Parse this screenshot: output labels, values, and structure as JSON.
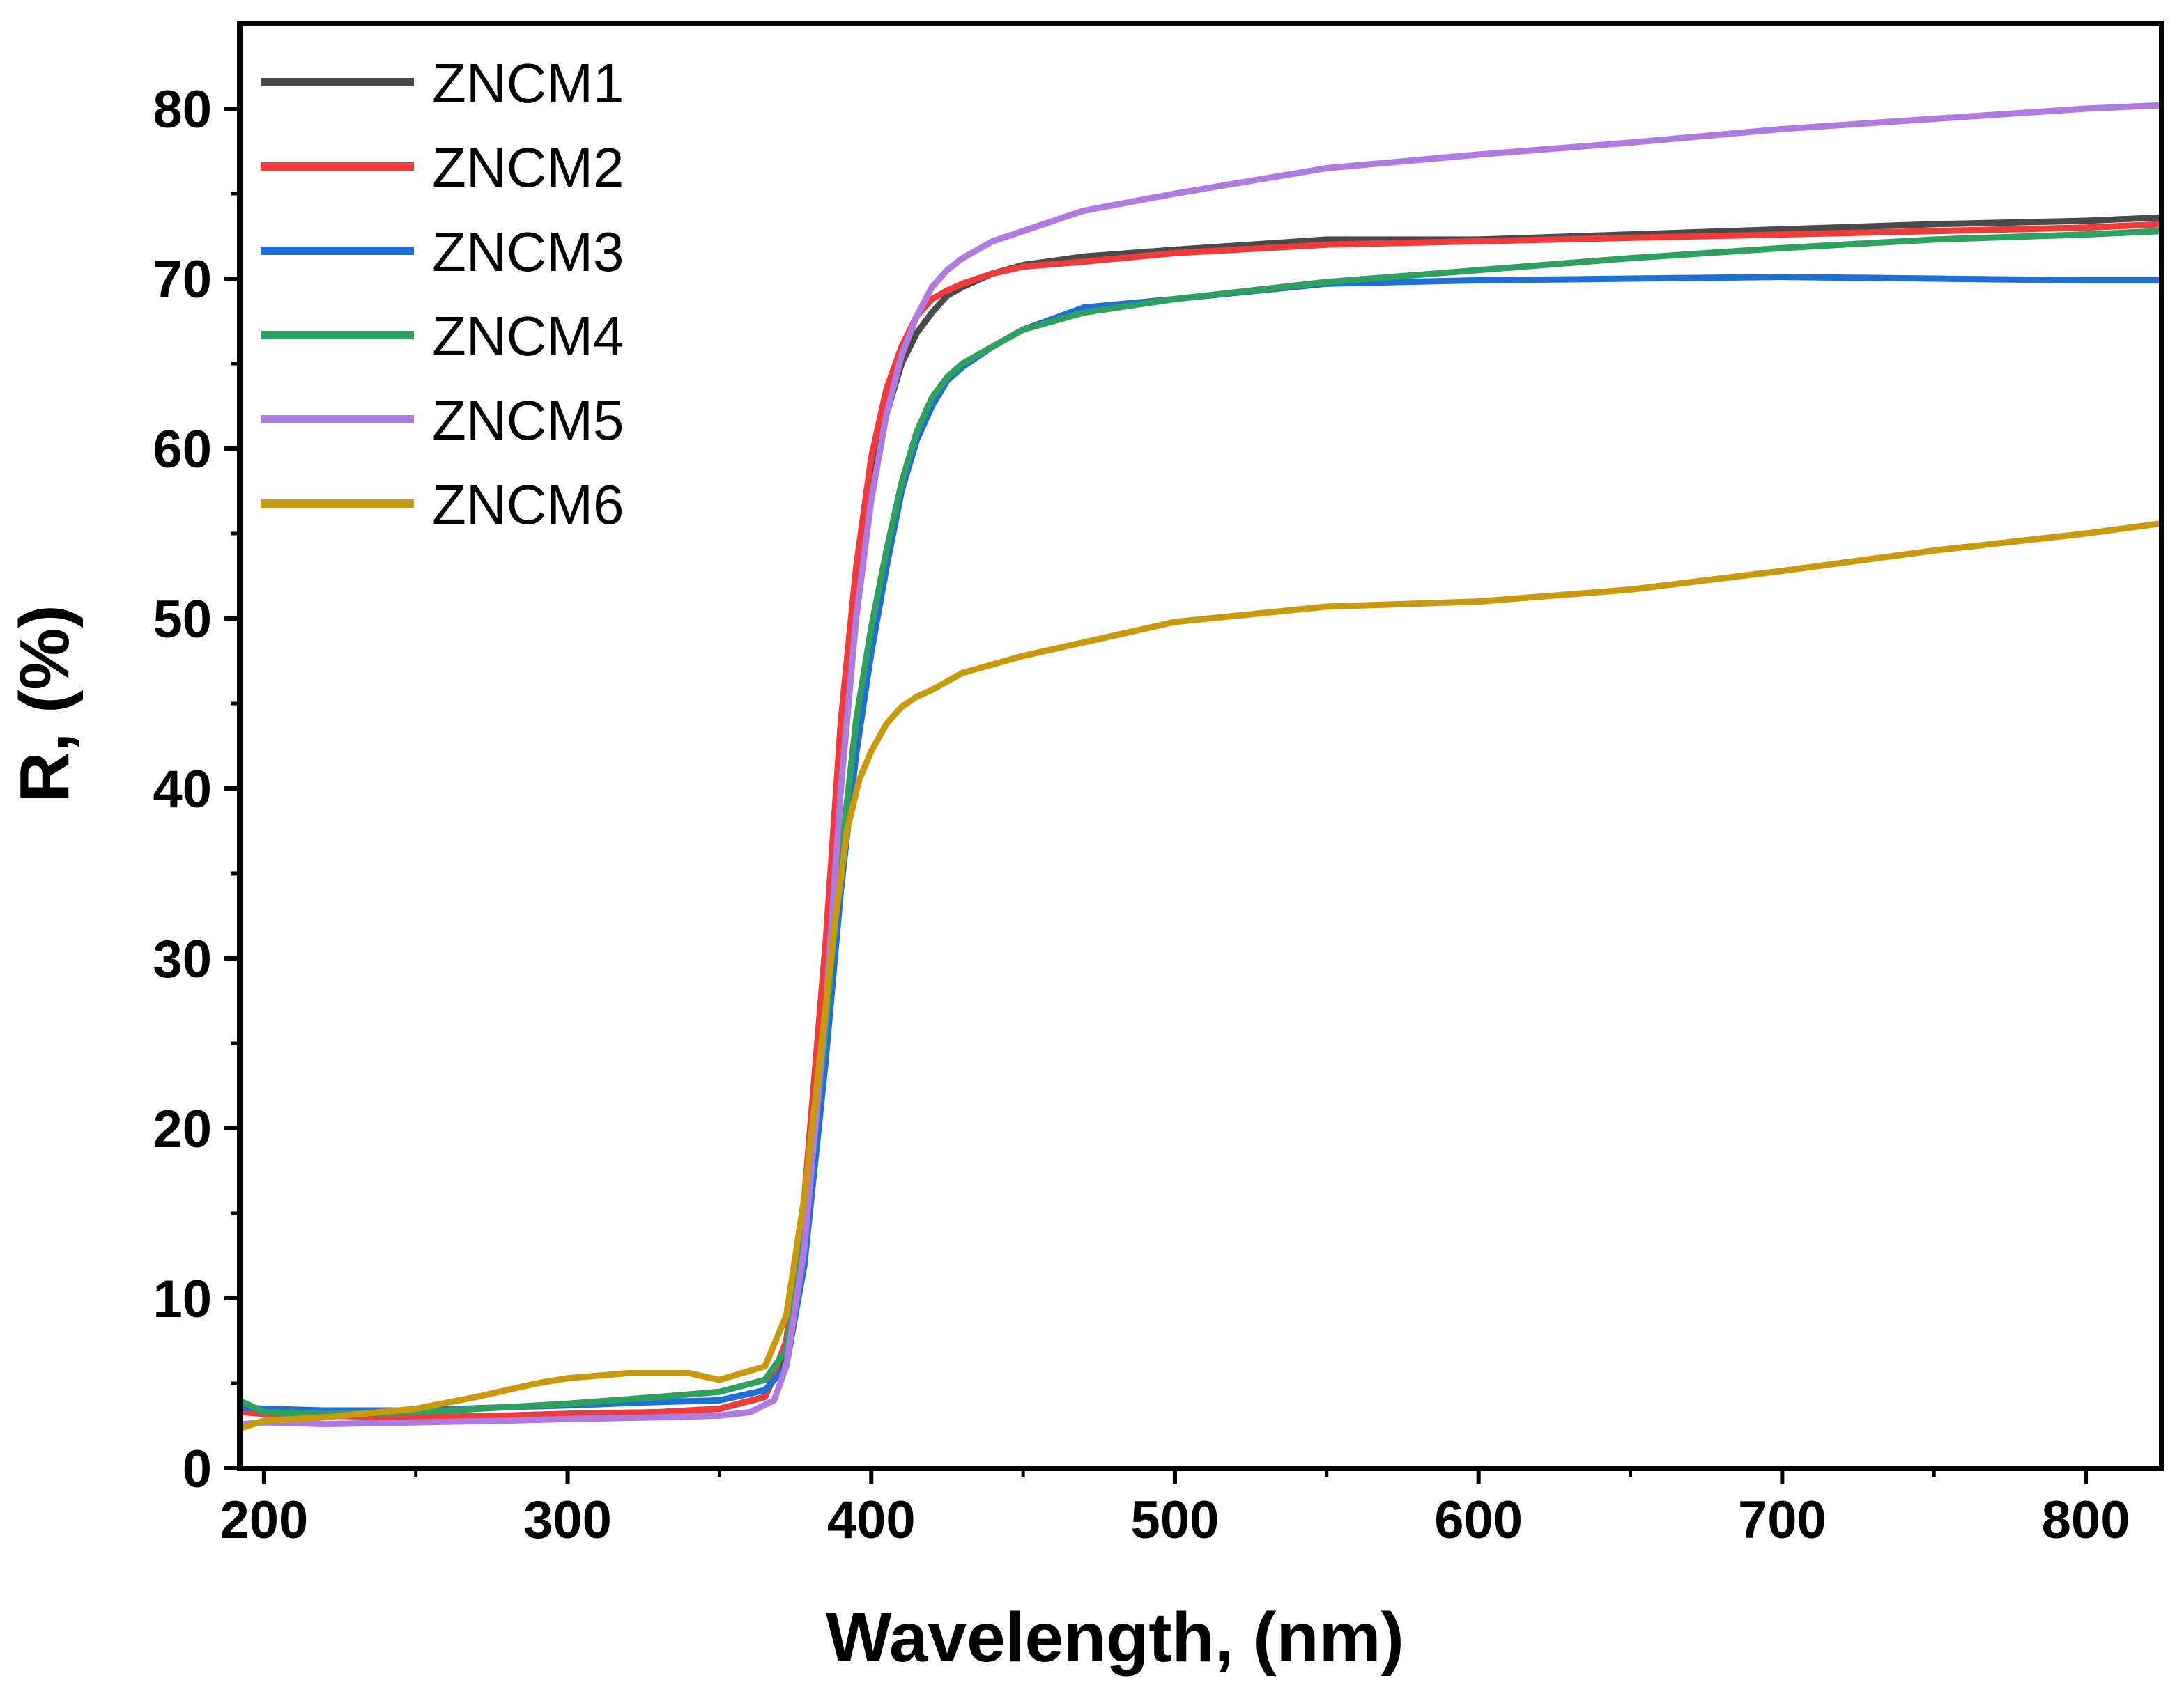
{
  "chart_data": {
    "type": "line",
    "title": "",
    "xlabel": "Wavelength, (nm)",
    "ylabel": "R, (%)",
    "xlim": [
      192,
      825
    ],
    "ylim": [
      0,
      85
    ],
    "xticks": [
      200,
      300,
      400,
      500,
      600,
      700,
      800
    ],
    "xtick_labels": [
      "200",
      "300",
      "400",
      "500",
      "600",
      "700",
      "800"
    ],
    "yticks": [
      0,
      10,
      20,
      30,
      40,
      50,
      60,
      70,
      80
    ],
    "ytick_labels": [
      "0",
      "10",
      "20",
      "30",
      "40",
      "50",
      "60",
      "70",
      "80"
    ],
    "x_minor_step": 50,
    "y_minor_step": 5,
    "grid": false,
    "legend_position": "top-left",
    "series": [
      {
        "name": "ZNCM1",
        "color": "#4a4a4a",
        "x": [
          193,
          200,
          220,
          250,
          280,
          300,
          330,
          350,
          365,
          372,
          378,
          385,
          390,
          395,
          400,
          405,
          410,
          415,
          420,
          425,
          430,
          440,
          450,
          470,
          500,
          550,
          600,
          650,
          700,
          750,
          800,
          825
        ],
        "y": [
          3.8,
          3.3,
          3.1,
          3.0,
          3.1,
          3.2,
          3.3,
          3.5,
          4.2,
          7.0,
          15.0,
          29.0,
          42.0,
          51.0,
          58.0,
          62.0,
          65.0,
          66.8,
          68.0,
          69.0,
          69.5,
          70.3,
          70.8,
          71.3,
          71.7,
          72.3,
          72.3,
          72.6,
          72.9,
          73.2,
          73.4,
          73.6
        ]
      },
      {
        "name": "ZNCM2",
        "color": "#ee3b3b",
        "x": [
          193,
          200,
          220,
          250,
          280,
          300,
          330,
          350,
          365,
          372,
          378,
          385,
          390,
          395,
          400,
          405,
          410,
          415,
          420,
          425,
          430,
          440,
          450,
          470,
          500,
          550,
          600,
          650,
          700,
          750,
          800,
          825
        ],
        "y": [
          3.3,
          3.2,
          3.1,
          3.0,
          3.1,
          3.2,
          3.3,
          3.5,
          4.2,
          7.5,
          16.0,
          31.0,
          44.0,
          53.0,
          59.5,
          63.5,
          66.0,
          67.8,
          68.8,
          69.3,
          69.7,
          70.3,
          70.7,
          71.0,
          71.5,
          72.0,
          72.2,
          72.4,
          72.6,
          72.8,
          73.0,
          73.2
        ]
      },
      {
        "name": "ZNCM3",
        "color": "#1e6fd8",
        "x": [
          193,
          200,
          220,
          250,
          280,
          300,
          330,
          350,
          365,
          372,
          378,
          385,
          390,
          395,
          400,
          405,
          410,
          415,
          420,
          425,
          430,
          440,
          450,
          470,
          500,
          550,
          600,
          650,
          700,
          750,
          800,
          825
        ],
        "y": [
          3.6,
          3.5,
          3.4,
          3.4,
          3.6,
          3.7,
          3.9,
          4.0,
          4.6,
          6.0,
          12.0,
          24.0,
          34.0,
          42.0,
          48.0,
          53.0,
          57.5,
          60.5,
          62.5,
          64.0,
          64.8,
          66.0,
          67.0,
          68.3,
          68.8,
          69.7,
          69.9,
          70.0,
          70.1,
          70.0,
          69.9,
          69.9
        ]
      },
      {
        "name": "ZNCM4",
        "color": "#2fa05f",
        "x": [
          193,
          200,
          220,
          250,
          280,
          300,
          330,
          350,
          365,
          372,
          378,
          385,
          390,
          395,
          400,
          405,
          410,
          415,
          420,
          425,
          430,
          440,
          450,
          470,
          500,
          550,
          600,
          650,
          700,
          750,
          800,
          825
        ],
        "y": [
          3.9,
          3.3,
          3.2,
          3.3,
          3.6,
          3.8,
          4.2,
          4.5,
          5.2,
          7.0,
          13.5,
          26.0,
          36.0,
          44.0,
          49.5,
          54.0,
          58.0,
          61.0,
          63.0,
          64.2,
          65.0,
          66.0,
          67.0,
          68.0,
          68.8,
          69.8,
          70.5,
          71.2,
          71.8,
          72.3,
          72.6,
          72.8
        ]
      },
      {
        "name": "ZNCM5",
        "color": "#b07ae0",
        "x": [
          193,
          200,
          220,
          250,
          280,
          300,
          330,
          350,
          360,
          368,
          372,
          378,
          385,
          390,
          395,
          400,
          405,
          410,
          415,
          420,
          425,
          430,
          440,
          450,
          470,
          500,
          550,
          600,
          650,
          700,
          750,
          800,
          825
        ],
        "y": [
          2.6,
          2.7,
          2.6,
          2.7,
          2.8,
          2.9,
          3.0,
          3.1,
          3.3,
          4.0,
          6.0,
          13.0,
          27.0,
          40.0,
          50.0,
          57.0,
          62.0,
          65.5,
          67.8,
          69.5,
          70.5,
          71.2,
          72.2,
          72.8,
          74.0,
          75.0,
          76.5,
          77.3,
          78.0,
          78.8,
          79.4,
          80.0,
          80.2
        ]
      },
      {
        "name": "ZNCM6",
        "color": "#c89a10",
        "x": [
          193,
          200,
          220,
          250,
          270,
          290,
          300,
          320,
          340,
          350,
          365,
          372,
          378,
          383,
          388,
          392,
          396,
          400,
          405,
          410,
          415,
          420,
          430,
          440,
          450,
          470,
          500,
          550,
          600,
          650,
          700,
          750,
          800,
          825
        ],
        "y": [
          2.4,
          2.8,
          3.0,
          3.5,
          4.2,
          5.0,
          5.3,
          5.6,
          5.6,
          5.2,
          6.0,
          9.0,
          16.0,
          24.0,
          32.0,
          37.5,
          40.5,
          42.2,
          43.8,
          44.8,
          45.4,
          45.8,
          46.8,
          47.3,
          47.8,
          48.6,
          49.8,
          50.7,
          51.0,
          51.7,
          52.8,
          54.0,
          55.0,
          55.6
        ]
      }
    ]
  }
}
